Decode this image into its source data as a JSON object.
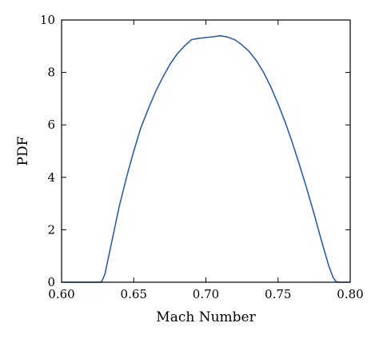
{
  "chart_data": {
    "type": "line",
    "title": "",
    "xlabel": "Mach Number",
    "ylabel": "PDF",
    "xlim": [
      0.6,
      0.8
    ],
    "ylim": [
      0,
      10
    ],
    "x_ticks": [
      0.6,
      0.65,
      0.7,
      0.75,
      0.8
    ],
    "x_tick_labels": [
      "0.60",
      "0.65",
      "0.70",
      "0.75",
      "0.80"
    ],
    "y_ticks": [
      0,
      2,
      4,
      6,
      8,
      10
    ],
    "y_tick_labels": [
      "0",
      "2",
      "4",
      "6",
      "8",
      "10"
    ],
    "grid": false,
    "legend": "none",
    "colors": {
      "line": "#2f5ea8",
      "axes": "#000000"
    },
    "series": [
      {
        "x": [
          0.6,
          0.62,
          0.627,
          0.628,
          0.63,
          0.635,
          0.64,
          0.645,
          0.65,
          0.655,
          0.66,
          0.665,
          0.67,
          0.675,
          0.68,
          0.685,
          0.69,
          0.695,
          0.7,
          0.705,
          0.71,
          0.715,
          0.72,
          0.725,
          0.73,
          0.735,
          0.74,
          0.745,
          0.75,
          0.755,
          0.76,
          0.765,
          0.77,
          0.775,
          0.78,
          0.785,
          0.788,
          0.79,
          0.792,
          0.8
        ],
        "y": [
          0.0,
          0.0,
          0.0,
          0.05,
          0.3,
          1.6,
          2.9,
          4.0,
          5.0,
          5.9,
          6.6,
          7.25,
          7.8,
          8.3,
          8.7,
          9.0,
          9.25,
          9.3,
          9.33,
          9.36,
          9.4,
          9.35,
          9.25,
          9.05,
          8.8,
          8.45,
          8.0,
          7.45,
          6.8,
          6.1,
          5.3,
          4.45,
          3.55,
          2.6,
          1.6,
          0.65,
          0.2,
          0.03,
          0.0,
          0.0
        ]
      }
    ]
  }
}
